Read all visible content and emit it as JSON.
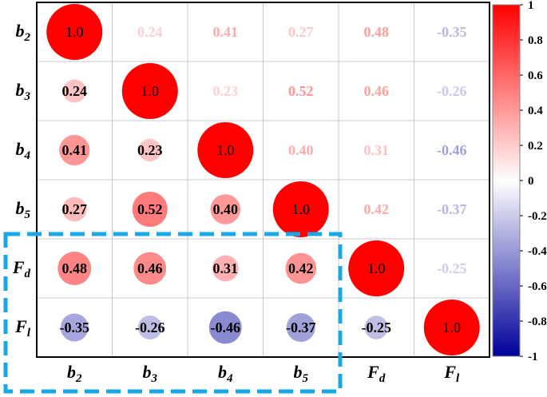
{
  "chart_data": {
    "type": "heatmap",
    "subtype": "correlation-matrix-circles",
    "row_labels": [
      {
        "base": "b",
        "sub": "2"
      },
      {
        "base": "b",
        "sub": "3"
      },
      {
        "base": "b",
        "sub": "4"
      },
      {
        "base": "b",
        "sub": "5"
      },
      {
        "base": "F",
        "sub": "d"
      },
      {
        "base": "F",
        "sub": "l"
      }
    ],
    "col_labels": [
      {
        "base": "b",
        "sub": "2"
      },
      {
        "base": "b",
        "sub": "3"
      },
      {
        "base": "b",
        "sub": "4"
      },
      {
        "base": "b",
        "sub": "5"
      },
      {
        "base": "F",
        "sub": "d"
      },
      {
        "base": "F",
        "sub": "l"
      }
    ],
    "matrix": [
      [
        1.0,
        0.24,
        0.41,
        0.27,
        0.48,
        -0.35
      ],
      [
        0.24,
        1.0,
        0.23,
        0.52,
        0.46,
        -0.26
      ],
      [
        0.41,
        0.23,
        1.0,
        0.4,
        0.31,
        -0.46
      ],
      [
        0.27,
        0.52,
        0.4,
        1.0,
        0.42,
        -0.37
      ],
      [
        0.48,
        0.46,
        0.31,
        0.42,
        1.0,
        -0.25
      ],
      [
        -0.35,
        -0.26,
        -0.46,
        -0.37,
        -0.25,
        1.0
      ]
    ],
    "lower_triangle": "circles-with-values",
    "upper_triangle": "colored-values-only",
    "color_scale": {
      "min": -1,
      "max": 1,
      "colors": {
        "negative": "#00009a",
        "zero": "#ffffff",
        "positive": "#ff0000"
      },
      "ticks": [
        "1",
        "0.8",
        "0.6",
        "0.4",
        "0.2",
        "0",
        "-0.2",
        "-0.4",
        "-0.6",
        "-0.8",
        "-1"
      ]
    },
    "highlight": {
      "style": "dashed",
      "color": "#1aa7e6",
      "rows": [
        4,
        5
      ],
      "cols": [
        0,
        3
      ]
    }
  }
}
